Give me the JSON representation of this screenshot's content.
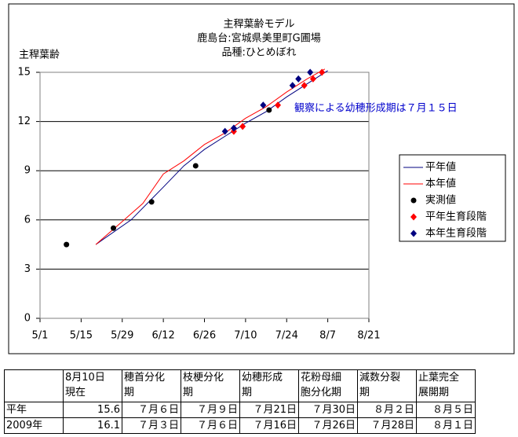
{
  "chart_data": {
    "type": "line",
    "title": [
      "主稈葉齢モデル",
      "鹿島台:宮城県美里町G圃場",
      "品種:ひとめぼれ"
    ],
    "ylabel": "主稈葉齢",
    "annotation": "観察による幼穂形成期は７月１５日",
    "xlim": [
      "5/1",
      "8/21"
    ],
    "xticks": [
      "5/1",
      "5/15",
      "5/29",
      "6/12",
      "6/26",
      "7/10",
      "7/24",
      "8/7",
      "8/21"
    ],
    "ylim": [
      0,
      15
    ],
    "yticks": [
      0,
      3,
      6,
      9,
      12,
      15
    ],
    "grid": true,
    "series": [
      {
        "name": "平年値",
        "color": "#000080",
        "marker": "line",
        "x": [
          "5/20",
          "6/1",
          "6/12",
          "6/19",
          "6/26",
          "7/3",
          "7/10",
          "7/17",
          "7/24",
          "7/31",
          "8/7"
        ],
        "values": [
          4.5,
          6.0,
          8.0,
          9.3,
          10.3,
          11.1,
          11.9,
          12.6,
          13.5,
          14.3,
          15.1
        ]
      },
      {
        "name": "本年値",
        "color": "#ff0000",
        "marker": "line",
        "x": [
          "5/20",
          "5/29",
          "6/5",
          "6/12",
          "6/19",
          "6/26",
          "7/3",
          "7/10",
          "7/17",
          "7/24",
          "7/31",
          "8/6"
        ],
        "values": [
          4.5,
          5.9,
          7.0,
          8.8,
          9.6,
          10.6,
          11.3,
          12.2,
          12.9,
          13.8,
          14.6,
          15.2
        ]
      },
      {
        "name": "実測値",
        "color": "#000000",
        "marker": "circle",
        "x": [
          "5/10",
          "5/26",
          "6/8",
          "6/23",
          "7/18"
        ],
        "values": [
          4.5,
          5.5,
          7.1,
          9.3,
          12.7
        ]
      },
      {
        "name": "平年生育段階",
        "color": "#ff0000",
        "marker": "diamond",
        "x": [
          "7/6",
          "7/9",
          "7/21",
          "7/30",
          "8/2",
          "8/5"
        ],
        "values": [
          11.4,
          11.7,
          13.0,
          14.2,
          14.6,
          15.0
        ]
      },
      {
        "name": "本年生育段階",
        "color": "#000080",
        "marker": "diamond",
        "x": [
          "7/3",
          "7/6",
          "7/16",
          "7/26",
          "7/28",
          "8/1"
        ],
        "values": [
          11.4,
          11.6,
          13.0,
          14.2,
          14.6,
          15.0
        ]
      }
    ]
  },
  "table": {
    "header": [
      "",
      "8月10日\n現在",
      "穂首分化\n期",
      "枝梗分化\n期",
      "幼穂形成\n期",
      "花粉母細\n胞分化期",
      "減数分裂\n期",
      "止葉完全\n展開期"
    ],
    "rows": [
      [
        "平年",
        15.6,
        "７月６日",
        "７月９日",
        "７月21日",
        "７月30日",
        "８月２日",
        "８月５日"
      ],
      [
        "2009年",
        16.1,
        "７月３日",
        "７月６日",
        "７月16日",
        "７月26日",
        "７月28日",
        "８月１日"
      ]
    ]
  }
}
